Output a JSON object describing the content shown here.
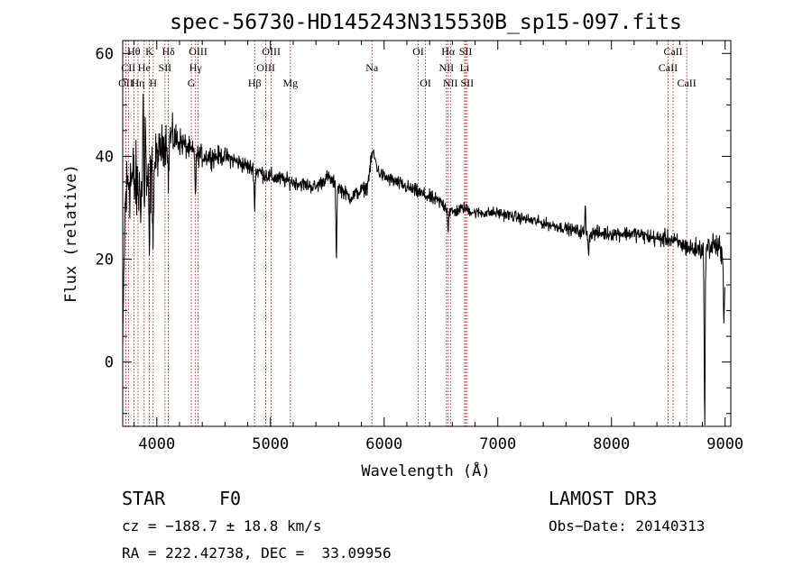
{
  "chart_data": {
    "type": "line",
    "title": "spec-56730-HD145243N315530B_sp15-097.fits",
    "xlabel": "Wavelength (Å)",
    "ylabel": "Flux (relative)",
    "xlim": [
      3700,
      9050
    ],
    "ylim": [
      -12.5,
      62.5
    ],
    "xticks": [
      4000,
      5000,
      6000,
      7000,
      8000,
      9000
    ],
    "xtick_labels": [
      "4000",
      "5000",
      "6000",
      "7000",
      "8000",
      "9000"
    ],
    "yticks": [
      0,
      20,
      40,
      60
    ],
    "ytick_labels": [
      "0",
      "20",
      "40",
      "60"
    ],
    "grid": false,
    "lines": [
      {
        "label": "OII",
        "wavelength": 3727,
        "row": 2
      },
      {
        "label": "Hθ",
        "wavelength": 3798,
        "row": 0
      },
      {
        "label": "CII",
        "wavelength": 3750,
        "row": 1
      },
      {
        "label": "Hη",
        "wavelength": 3835,
        "row": 2
      },
      {
        "label": "He",
        "wavelength": 3889,
        "row": 1
      },
      {
        "label": "K",
        "wavelength": 3934,
        "row": 0
      },
      {
        "label": "H",
        "wavelength": 3968,
        "row": 2
      },
      {
        "label": "SII",
        "wavelength": 4072,
        "row": 1
      },
      {
        "label": "Hδ",
        "wavelength": 4102,
        "row": 0
      },
      {
        "label": "G",
        "wavelength": 4304,
        "row": 2
      },
      {
        "label": "Hγ",
        "wavelength": 4341,
        "row": 1
      },
      {
        "label": "OIII",
        "wavelength": 4363,
        "row": 0
      },
      {
        "label": "Hβ",
        "wavelength": 4861,
        "row": 2
      },
      {
        "label": "OIII",
        "wavelength": 4959,
        "row": 1
      },
      {
        "label": "OIII",
        "wavelength": 5007,
        "row": 0
      },
      {
        "label": "Mg",
        "wavelength": 5175,
        "row": 2
      },
      {
        "label": "Na",
        "wavelength": 5893,
        "row": 1
      },
      {
        "label": "OI",
        "wavelength": 6300,
        "row": 0
      },
      {
        "label": "OI",
        "wavelength": 6364,
        "row": 2
      },
      {
        "label": "NII",
        "wavelength": 6548,
        "row": 1
      },
      {
        "label": "NII",
        "wavelength": 6583,
        "row": 2
      },
      {
        "label": "Hα",
        "wavelength": 6563,
        "row": 0
      },
      {
        "label": "Li",
        "wavelength": 6708,
        "row": 1
      },
      {
        "label": "SII",
        "wavelength": 6717,
        "row": 0
      },
      {
        "label": "SII",
        "wavelength": 6731,
        "row": 2
      },
      {
        "label": "CaII",
        "wavelength": 8498,
        "row": 1
      },
      {
        "label": "CaII",
        "wavelength": 8542,
        "row": 0
      },
      {
        "label": "CaII",
        "wavelength": 8662,
        "row": 2
      }
    ],
    "spectrum_anchors": {
      "wavelength": [
        3700,
        3720,
        3750,
        3800,
        3850,
        3900,
        3950,
        4000,
        4050,
        4100,
        4200,
        4300,
        4400,
        4500,
        4600,
        4700,
        4800,
        4900,
        5000,
        5200,
        5400,
        5500,
        5700,
        5850,
        5900,
        5950,
        6000,
        6200,
        6400,
        6500,
        6600,
        6700,
        6800,
        7000,
        7200,
        7400,
        7600,
        7800,
        8000,
        8200,
        8400,
        8500,
        8600,
        8700,
        8780,
        8830,
        8900,
        8950,
        8980,
        9000
      ],
      "flux": [
        3,
        30,
        36,
        35,
        33,
        34,
        36,
        40,
        42,
        44,
        43,
        41,
        40,
        40,
        40,
        39,
        38,
        37,
        36,
        35,
        34,
        36,
        32,
        34,
        41,
        37,
        36,
        34,
        32,
        31,
        29,
        30,
        29,
        29,
        28,
        27,
        26,
        25,
        25,
        25,
        24,
        24,
        23,
        22,
        22,
        22,
        23,
        22,
        19,
        19
      ],
      "noise": [
        1,
        6,
        6,
        6,
        5,
        5,
        5,
        3,
        3,
        3,
        2,
        1.5,
        1.5,
        1.5,
        1.2,
        1.2,
        1.2,
        1.2,
        1.2,
        1,
        1,
        1,
        1,
        1,
        1,
        1,
        1,
        1,
        1,
        1,
        1,
        0.8,
        0.8,
        0.8,
        0.8,
        0.8,
        0.8,
        1,
        1,
        1,
        1.2,
        1.2,
        1.2,
        1.5,
        1.5,
        1.5,
        2,
        2,
        2,
        2
      ],
      "dips": [
        {
          "wavelength": 3934,
          "depth": 15
        },
        {
          "wavelength": 3968,
          "depth": 12
        },
        {
          "wavelength": 4102,
          "depth": 10
        },
        {
          "wavelength": 4341,
          "depth": 8
        },
        {
          "wavelength": 4861,
          "depth": 8
        },
        {
          "wavelength": 5580,
          "depth": 14
        },
        {
          "wavelength": 6563,
          "depth": 4
        },
        {
          "wavelength": 7800,
          "depth": 4
        },
        {
          "wavelength": 8820,
          "depth": 34
        },
        {
          "wavelength": 8990,
          "depth": 10
        }
      ],
      "spikes": [
        {
          "wavelength": 3880,
          "height": 20
        },
        {
          "wavelength": 3900,
          "height": 14
        },
        {
          "wavelength": 7770,
          "height": 6
        }
      ]
    }
  },
  "info": {
    "object_class": "STAR",
    "subclass": "F0",
    "survey": "LAMOST DR3",
    "velocity": "cz = −188.7 ± 18.8 km/s",
    "obs_date": "Obs−Date: 20140313",
    "coords": "RA = 222.42738, DEC =  33.09956"
  },
  "colors": {
    "spectrum": "#000000",
    "line_markers": "#a00000",
    "axes": "#000000"
  }
}
